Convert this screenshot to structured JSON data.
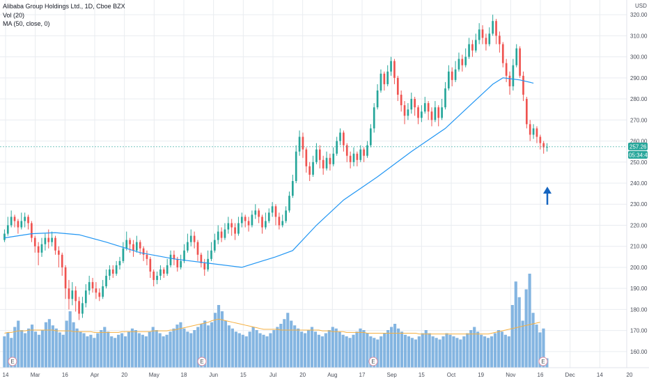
{
  "legend": {
    "title": "Alibaba Group Holdings Ltd., 1D, Cboe BZX",
    "vol": "Vol (20)",
    "ma": "MA (50, close, 0)"
  },
  "currency": "USD",
  "price_tag": "257.26",
  "time_tag": "05:34:43",
  "earnings_marker": "E",
  "colors": {
    "up": "#26a69a",
    "down": "#ef5350",
    "ma": "#2196f3",
    "vol_bar": "#6fa8dc",
    "vol_ma": "#f5b042",
    "arrow": "#1565c0",
    "grid": "#e9ecf0",
    "current_line": "#26a69a"
  },
  "chart_data": {
    "type": "candlestick",
    "y_axis": {
      "min": 155,
      "max": 325,
      "tick_labels": [
        "160.00",
        "170.00",
        "180.00",
        "190.00",
        "200.00",
        "210.00",
        "220.00",
        "230.00",
        "240.00",
        "250.00",
        "260.00",
        "270.00",
        "280.00",
        "290.00",
        "300.00",
        "310.00",
        "320.00"
      ]
    },
    "x_axis": {
      "tick_labels": [
        "14",
        "Mar",
        "16",
        "Apr",
        "20",
        "May",
        "18",
        "Jun",
        "15",
        "Jul",
        "20",
        "Aug",
        "17",
        "Sep",
        "15",
        "Oct",
        "19",
        "Nov",
        "16",
        "Dec",
        "14",
        "20"
      ]
    },
    "current_price": 257.26,
    "price_series": [
      {
        "o": 213,
        "c": 216,
        "h": 218,
        "l": 212
      },
      {
        "o": 216,
        "c": 220,
        "h": 224,
        "l": 215
      },
      {
        "o": 220,
        "c": 224,
        "h": 227,
        "l": 219
      },
      {
        "o": 224,
        "c": 222,
        "h": 225,
        "l": 219
      },
      {
        "o": 222,
        "c": 219,
        "h": 223,
        "l": 216
      },
      {
        "o": 219,
        "c": 222,
        "h": 226,
        "l": 218
      },
      {
        "o": 222,
        "c": 224,
        "h": 226,
        "l": 219
      },
      {
        "o": 224,
        "c": 221,
        "h": 225,
        "l": 218
      },
      {
        "o": 221,
        "c": 214,
        "h": 222,
        "l": 212
      },
      {
        "o": 214,
        "c": 210,
        "h": 215,
        "l": 207
      },
      {
        "o": 210,
        "c": 207,
        "h": 212,
        "l": 201
      },
      {
        "o": 207,
        "c": 211,
        "h": 214,
        "l": 205
      },
      {
        "o": 211,
        "c": 214,
        "h": 216,
        "l": 208
      },
      {
        "o": 214,
        "c": 212,
        "h": 218,
        "l": 209
      },
      {
        "o": 212,
        "c": 214,
        "h": 217,
        "l": 210
      },
      {
        "o": 214,
        "c": 208,
        "h": 215,
        "l": 206
      },
      {
        "o": 208,
        "c": 206,
        "h": 210,
        "l": 200
      },
      {
        "o": 206,
        "c": 200,
        "h": 207,
        "l": 196
      },
      {
        "o": 200,
        "c": 190,
        "h": 201,
        "l": 185
      },
      {
        "o": 190,
        "c": 185,
        "h": 194,
        "l": 180
      },
      {
        "o": 185,
        "c": 189,
        "h": 193,
        "l": 182
      },
      {
        "o": 189,
        "c": 184,
        "h": 191,
        "l": 179
      },
      {
        "o": 184,
        "c": 178,
        "h": 186,
        "l": 175
      },
      {
        "o": 178,
        "c": 183,
        "h": 186,
        "l": 176
      },
      {
        "o": 183,
        "c": 189,
        "h": 192,
        "l": 181
      },
      {
        "o": 189,
        "c": 193,
        "h": 196,
        "l": 187
      },
      {
        "o": 193,
        "c": 190,
        "h": 195,
        "l": 188
      },
      {
        "o": 190,
        "c": 188,
        "h": 193,
        "l": 185
      },
      {
        "o": 188,
        "c": 186,
        "h": 190,
        "l": 184
      },
      {
        "o": 186,
        "c": 191,
        "h": 194,
        "l": 185
      },
      {
        "o": 191,
        "c": 196,
        "h": 199,
        "l": 190
      },
      {
        "o": 196,
        "c": 199,
        "h": 201,
        "l": 194
      },
      {
        "o": 199,
        "c": 197,
        "h": 201,
        "l": 195
      },
      {
        "o": 197,
        "c": 201,
        "h": 203,
        "l": 196
      },
      {
        "o": 201,
        "c": 203,
        "h": 205,
        "l": 199
      },
      {
        "o": 203,
        "c": 209,
        "h": 212,
        "l": 202
      },
      {
        "o": 209,
        "c": 213,
        "h": 217,
        "l": 208
      },
      {
        "o": 213,
        "c": 211,
        "h": 214,
        "l": 207
      },
      {
        "o": 211,
        "c": 208,
        "h": 213,
        "l": 205
      },
      {
        "o": 208,
        "c": 212,
        "h": 215,
        "l": 207
      },
      {
        "o": 212,
        "c": 209,
        "h": 213,
        "l": 206
      },
      {
        "o": 209,
        "c": 206,
        "h": 210,
        "l": 203
      },
      {
        "o": 206,
        "c": 204,
        "h": 208,
        "l": 201
      },
      {
        "o": 204,
        "c": 198,
        "h": 205,
        "l": 195
      },
      {
        "o": 198,
        "c": 194,
        "h": 199,
        "l": 191
      },
      {
        "o": 194,
        "c": 196,
        "h": 198,
        "l": 192
      },
      {
        "o": 196,
        "c": 199,
        "h": 201,
        "l": 194
      },
      {
        "o": 199,
        "c": 197,
        "h": 200,
        "l": 195
      },
      {
        "o": 197,
        "c": 201,
        "h": 204,
        "l": 196
      },
      {
        "o": 201,
        "c": 206,
        "h": 208,
        "l": 200
      },
      {
        "o": 206,
        "c": 204,
        "h": 208,
        "l": 201
      },
      {
        "o": 204,
        "c": 200,
        "h": 205,
        "l": 198
      },
      {
        "o": 200,
        "c": 203,
        "h": 206,
        "l": 199
      },
      {
        "o": 203,
        "c": 208,
        "h": 211,
        "l": 202
      },
      {
        "o": 208,
        "c": 212,
        "h": 216,
        "l": 207
      },
      {
        "o": 212,
        "c": 215,
        "h": 218,
        "l": 210
      },
      {
        "o": 215,
        "c": 212,
        "h": 217,
        "l": 209
      },
      {
        "o": 212,
        "c": 206,
        "h": 213,
        "l": 203
      },
      {
        "o": 206,
        "c": 202,
        "h": 207,
        "l": 200
      },
      {
        "o": 202,
        "c": 199,
        "h": 204,
        "l": 196
      },
      {
        "o": 199,
        "c": 204,
        "h": 208,
        "l": 198
      },
      {
        "o": 204,
        "c": 208,
        "h": 212,
        "l": 203
      },
      {
        "o": 208,
        "c": 213,
        "h": 216,
        "l": 207
      },
      {
        "o": 213,
        "c": 217,
        "h": 220,
        "l": 211
      },
      {
        "o": 217,
        "c": 214,
        "h": 219,
        "l": 212
      },
      {
        "o": 214,
        "c": 218,
        "h": 221,
        "l": 213
      },
      {
        "o": 218,
        "c": 221,
        "h": 224,
        "l": 216
      },
      {
        "o": 221,
        "c": 219,
        "h": 223,
        "l": 215
      },
      {
        "o": 219,
        "c": 216,
        "h": 221,
        "l": 213
      },
      {
        "o": 216,
        "c": 221,
        "h": 224,
        "l": 215
      },
      {
        "o": 221,
        "c": 224,
        "h": 226,
        "l": 219
      },
      {
        "o": 224,
        "c": 222,
        "h": 225,
        "l": 219
      },
      {
        "o": 222,
        "c": 220,
        "h": 224,
        "l": 217
      },
      {
        "o": 220,
        "c": 225,
        "h": 227,
        "l": 219
      },
      {
        "o": 225,
        "c": 227,
        "h": 230,
        "l": 223
      },
      {
        "o": 227,
        "c": 224,
        "h": 228,
        "l": 221
      },
      {
        "o": 224,
        "c": 219,
        "h": 225,
        "l": 216
      },
      {
        "o": 219,
        "c": 222,
        "h": 226,
        "l": 218
      },
      {
        "o": 222,
        "c": 226,
        "h": 228,
        "l": 221
      },
      {
        "o": 226,
        "c": 229,
        "h": 231,
        "l": 224
      },
      {
        "o": 229,
        "c": 224,
        "h": 230,
        "l": 220
      },
      {
        "o": 224,
        "c": 220,
        "h": 226,
        "l": 218
      },
      {
        "o": 220,
        "c": 222,
        "h": 225,
        "l": 219
      },
      {
        "o": 222,
        "c": 227,
        "h": 229,
        "l": 221
      },
      {
        "o": 227,
        "c": 234,
        "h": 236,
        "l": 226
      },
      {
        "o": 234,
        "c": 241,
        "h": 244,
        "l": 233
      },
      {
        "o": 241,
        "c": 255,
        "h": 258,
        "l": 240
      },
      {
        "o": 255,
        "c": 262,
        "h": 265,
        "l": 253
      },
      {
        "o": 262,
        "c": 256,
        "h": 264,
        "l": 252
      },
      {
        "o": 256,
        "c": 248,
        "h": 257,
        "l": 245
      },
      {
        "o": 248,
        "c": 244,
        "h": 250,
        "l": 241
      },
      {
        "o": 244,
        "c": 250,
        "h": 253,
        "l": 243
      },
      {
        "o": 250,
        "c": 256,
        "h": 259,
        "l": 249
      },
      {
        "o": 256,
        "c": 251,
        "h": 258,
        "l": 247
      },
      {
        "o": 251,
        "c": 247,
        "h": 253,
        "l": 244
      },
      {
        "o": 247,
        "c": 252,
        "h": 255,
        "l": 246
      },
      {
        "o": 252,
        "c": 249,
        "h": 254,
        "l": 246
      },
      {
        "o": 249,
        "c": 254,
        "h": 257,
        "l": 248
      },
      {
        "o": 254,
        "c": 260,
        "h": 262,
        "l": 253
      },
      {
        "o": 260,
        "c": 264,
        "h": 266,
        "l": 258
      },
      {
        "o": 264,
        "c": 258,
        "h": 265,
        "l": 255
      },
      {
        "o": 258,
        "c": 253,
        "h": 259,
        "l": 250
      },
      {
        "o": 253,
        "c": 250,
        "h": 255,
        "l": 247
      },
      {
        "o": 250,
        "c": 254,
        "h": 257,
        "l": 248
      },
      {
        "o": 254,
        "c": 251,
        "h": 255,
        "l": 248
      },
      {
        "o": 251,
        "c": 256,
        "h": 258,
        "l": 250
      },
      {
        "o": 256,
        "c": 253,
        "h": 257,
        "l": 250
      },
      {
        "o": 253,
        "c": 258,
        "h": 260,
        "l": 252
      },
      {
        "o": 258,
        "c": 266,
        "h": 268,
        "l": 257
      },
      {
        "o": 266,
        "c": 276,
        "h": 278,
        "l": 264
      },
      {
        "o": 276,
        "c": 284,
        "h": 287,
        "l": 275
      },
      {
        "o": 284,
        "c": 292,
        "h": 294,
        "l": 283
      },
      {
        "o": 292,
        "c": 287,
        "h": 293,
        "l": 284
      },
      {
        "o": 287,
        "c": 293,
        "h": 296,
        "l": 286
      },
      {
        "o": 293,
        "c": 298,
        "h": 300,
        "l": 291
      },
      {
        "o": 298,
        "c": 290,
        "h": 299,
        "l": 287
      },
      {
        "o": 290,
        "c": 282,
        "h": 291,
        "l": 279
      },
      {
        "o": 282,
        "c": 277,
        "h": 284,
        "l": 274
      },
      {
        "o": 277,
        "c": 272,
        "h": 279,
        "l": 268
      },
      {
        "o": 272,
        "c": 275,
        "h": 278,
        "l": 270
      },
      {
        "o": 275,
        "c": 280,
        "h": 283,
        "l": 273
      },
      {
        "o": 280,
        "c": 276,
        "h": 281,
        "l": 272
      },
      {
        "o": 276,
        "c": 271,
        "h": 277,
        "l": 268
      },
      {
        "o": 271,
        "c": 274,
        "h": 277,
        "l": 269
      },
      {
        "o": 274,
        "c": 278,
        "h": 281,
        "l": 273
      },
      {
        "o": 278,
        "c": 274,
        "h": 279,
        "l": 270
      },
      {
        "o": 274,
        "c": 270,
        "h": 276,
        "l": 267
      },
      {
        "o": 270,
        "c": 276,
        "h": 279,
        "l": 269
      },
      {
        "o": 276,
        "c": 271,
        "h": 277,
        "l": 267
      },
      {
        "o": 271,
        "c": 276,
        "h": 280,
        "l": 270
      },
      {
        "o": 276,
        "c": 285,
        "h": 288,
        "l": 275
      },
      {
        "o": 285,
        "c": 293,
        "h": 296,
        "l": 284
      },
      {
        "o": 293,
        "c": 289,
        "h": 295,
        "l": 286
      },
      {
        "o": 289,
        "c": 294,
        "h": 298,
        "l": 288
      },
      {
        "o": 294,
        "c": 299,
        "h": 302,
        "l": 293
      },
      {
        "o": 299,
        "c": 296,
        "h": 301,
        "l": 293
      },
      {
        "o": 296,
        "c": 300,
        "h": 304,
        "l": 295
      },
      {
        "o": 300,
        "c": 306,
        "h": 309,
        "l": 299
      },
      {
        "o": 306,
        "c": 303,
        "h": 308,
        "l": 300
      },
      {
        "o": 303,
        "c": 308,
        "h": 311,
        "l": 302
      },
      {
        "o": 308,
        "c": 313,
        "h": 316,
        "l": 306
      },
      {
        "o": 313,
        "c": 309,
        "h": 315,
        "l": 306
      },
      {
        "o": 309,
        "c": 306,
        "h": 311,
        "l": 303
      },
      {
        "o": 306,
        "c": 311,
        "h": 314,
        "l": 305
      },
      {
        "o": 311,
        "c": 317,
        "h": 320,
        "l": 310
      },
      {
        "o": 317,
        "c": 310,
        "h": 318,
        "l": 306
      },
      {
        "o": 310,
        "c": 306,
        "h": 312,
        "l": 302
      },
      {
        "o": 306,
        "c": 297,
        "h": 307,
        "l": 295
      },
      {
        "o": 297,
        "c": 291,
        "h": 299,
        "l": 288
      },
      {
        "o": 291,
        "c": 286,
        "h": 293,
        "l": 282
      },
      {
        "o": 286,
        "c": 296,
        "h": 299,
        "l": 284
      },
      {
        "o": 296,
        "c": 304,
        "h": 306,
        "l": 295
      },
      {
        "o": 304,
        "c": 291,
        "h": 305,
        "l": 290
      },
      {
        "o": 291,
        "c": 282,
        "h": 293,
        "l": 279
      },
      {
        "o": 280,
        "c": 268,
        "h": 281,
        "l": 266
      },
      {
        "o": 268,
        "c": 263,
        "h": 270,
        "l": 260
      },
      {
        "o": 263,
        "c": 266,
        "h": 268,
        "l": 261
      },
      {
        "o": 266,
        "c": 262,
        "h": 267,
        "l": 259
      },
      {
        "o": 262,
        "c": 259,
        "h": 263,
        "l": 256
      },
      {
        "o": 259,
        "c": 257,
        "h": 260,
        "l": 254
      },
      {
        "o": 257,
        "c": 257.26,
        "h": 259,
        "l": 255
      }
    ],
    "ma_series": [
      {
        "x": 0,
        "y": 214
      },
      {
        "x": 8,
        "y": 216
      },
      {
        "x": 15,
        "y": 216.5
      },
      {
        "x": 22,
        "y": 215.5
      },
      {
        "x": 30,
        "y": 212
      },
      {
        "x": 40,
        "y": 207
      },
      {
        "x": 50,
        "y": 204
      },
      {
        "x": 60,
        "y": 202
      },
      {
        "x": 70,
        "y": 200
      },
      {
        "x": 80,
        "y": 205
      },
      {
        "x": 85,
        "y": 208
      },
      {
        "x": 92,
        "y": 220
      },
      {
        "x": 100,
        "y": 232
      },
      {
        "x": 110,
        "y": 243
      },
      {
        "x": 120,
        "y": 255
      },
      {
        "x": 130,
        "y": 266
      },
      {
        "x": 138,
        "y": 278
      },
      {
        "x": 144,
        "y": 287
      },
      {
        "x": 147,
        "y": 290
      },
      {
        "x": 152,
        "y": 289
      },
      {
        "x": 156,
        "y": 287.5
      }
    ],
    "volume_bars": [
      40,
      45,
      38,
      52,
      60,
      48,
      44,
      50,
      55,
      46,
      42,
      48,
      58,
      62,
      54,
      50,
      45,
      42,
      60,
      72,
      58,
      50,
      46,
      44,
      40,
      42,
      38,
      44,
      48,
      52,
      46,
      40,
      38,
      42,
      44,
      40,
      46,
      50,
      48,
      44,
      42,
      40,
      46,
      52,
      48,
      44,
      40,
      42,
      46,
      50,
      55,
      58,
      50,
      46,
      44,
      48,
      52,
      56,
      60,
      54,
      58,
      70,
      80,
      72,
      60,
      54,
      50,
      46,
      44,
      42,
      40,
      46,
      52,
      48,
      44,
      42,
      40,
      44,
      48,
      52,
      56,
      62,
      70,
      60,
      54,
      50,
      46,
      44,
      48,
      52,
      46,
      42,
      40,
      44,
      48,
      52,
      50,
      46,
      42,
      40,
      38,
      42,
      46,
      50,
      48,
      44,
      40,
      38,
      36,
      40,
      44,
      48,
      52,
      56,
      50,
      46,
      42,
      40,
      38,
      36,
      40,
      44,
      48,
      44,
      40,
      38,
      36,
      40,
      44,
      42,
      40,
      38,
      36,
      40,
      44,
      48,
      52,
      46,
      42,
      40,
      38,
      40,
      44,
      48,
      46,
      42,
      40,
      80,
      110,
      90,
      60,
      100,
      120,
      70,
      55,
      45,
      50,
      12
    ],
    "volume_ma": [
      44,
      45,
      45,
      46,
      47,
      47,
      47,
      48,
      48,
      48,
      48,
      48,
      48,
      48,
      48,
      47,
      47,
      47,
      47,
      47,
      46,
      46,
      46,
      46,
      46,
      46,
      45,
      45,
      45,
      45,
      45,
      45,
      45,
      45,
      46,
      46,
      46,
      46,
      46,
      46,
      46,
      46,
      46,
      47,
      47,
      47,
      47,
      47,
      48,
      48,
      49,
      50,
      51,
      52,
      53,
      54,
      55,
      56,
      57,
      58,
      60,
      61,
      62,
      61,
      60,
      59,
      58,
      57,
      56,
      55,
      54,
      53,
      52,
      51,
      50,
      49,
      49,
      49,
      49,
      49,
      48,
      48,
      48,
      48,
      48,
      48,
      48,
      48,
      48,
      48,
      48,
      48,
      47,
      47,
      47,
      46,
      46,
      46,
      46,
      45,
      45,
      45,
      45,
      45,
      45,
      44,
      44,
      44,
      44,
      44,
      44,
      44,
      44,
      44,
      44,
      44,
      44,
      44,
      44,
      44,
      43,
      43,
      43,
      43,
      43,
      43,
      43,
      43,
      43,
      43,
      43,
      43,
      43,
      43,
      43,
      43,
      43,
      43,
      43,
      43,
      43,
      44,
      45,
      46,
      47,
      48,
      49,
      50,
      51,
      52,
      53,
      54,
      55,
      56,
      57,
      58
    ]
  }
}
